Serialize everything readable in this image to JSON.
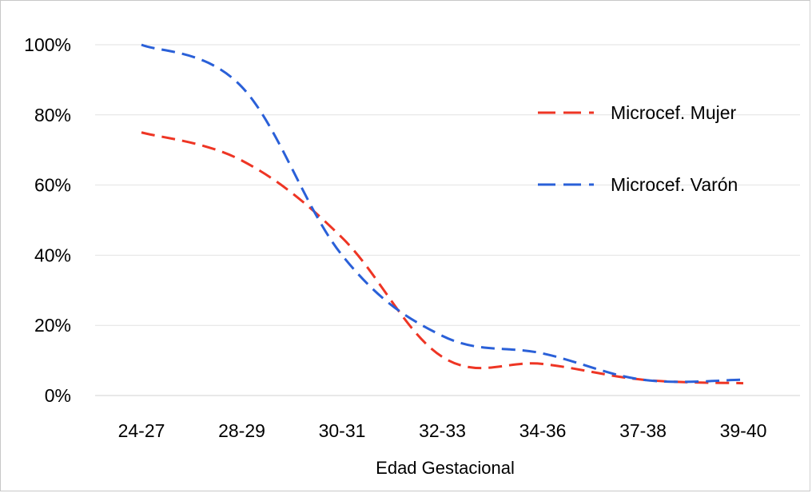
{
  "chart_data": {
    "type": "line",
    "title": "",
    "xlabel": "Edad Gestacional",
    "ylabel": "",
    "categories": [
      "24-27",
      "28-29",
      "30-31",
      "32-33",
      "34-36",
      "37-38",
      "39-40"
    ],
    "ylim": [
      0,
      100
    ],
    "yticks": [
      "0%",
      "20%",
      "40%",
      "60%",
      "80%",
      "100%"
    ],
    "grid": true,
    "legend_position": "top-right",
    "series": [
      {
        "name": "Microcef. Mujer",
        "color": "#ee3524",
        "dash": "dashed",
        "values": [
          75,
          67,
          45,
          11,
          9,
          4.5,
          3.5
        ]
      },
      {
        "name": "Microcef. Varón",
        "color": "#2a60d8",
        "dash": "dashed",
        "values": [
          100,
          88,
          40,
          17,
          12,
          4.5,
          4.5
        ]
      }
    ]
  }
}
